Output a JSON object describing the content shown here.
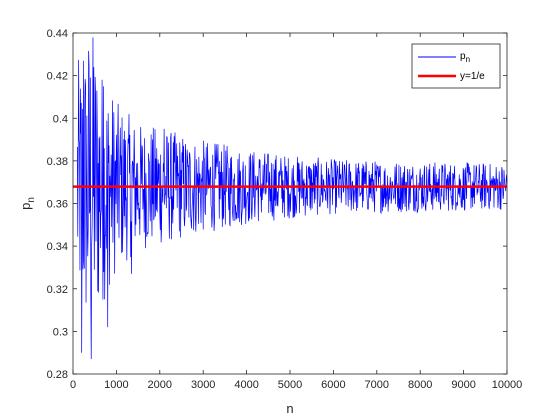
{
  "chart_data": {
    "type": "line",
    "xlabel": "n",
    "ylabel": "p",
    "ylabel_sub": "n",
    "xlim": [
      0,
      10000
    ],
    "ylim": [
      0.28,
      0.44
    ],
    "xticks": [
      0,
      1000,
      2000,
      3000,
      4000,
      5000,
      6000,
      7000,
      8000,
      9000,
      10000
    ],
    "xtick_labels": [
      "0",
      "1000",
      "2000",
      "3000",
      "4000",
      "5000",
      "6000",
      "7000",
      "8000",
      "9000",
      "10000"
    ],
    "yticks": [
      0.28,
      0.3,
      0.32,
      0.34,
      0.36,
      0.38,
      0.4,
      0.42,
      0.44
    ],
    "ytick_labels": [
      "0.28",
      "0.3",
      "0.32",
      "0.34",
      "0.36",
      "0.38",
      "0.4",
      "0.42",
      "0.44"
    ],
    "grid": false,
    "legend_position": "top-right",
    "series": [
      {
        "name": "p",
        "name_sub": "n",
        "color": "#0000ff",
        "style": "noisy line",
        "x_range": [
          100,
          10000
        ],
        "x_step": 10,
        "center": 0.3679,
        "envelope_x": [
          100,
          200,
          300,
          400,
          600,
          800,
          1000,
          1500,
          2000,
          3000,
          4000,
          5000,
          6000,
          8000,
          10000
        ],
        "envelope_halfwidth": [
          0.06,
          0.06,
          0.07,
          0.08,
          0.06,
          0.05,
          0.04,
          0.03,
          0.028,
          0.022,
          0.018,
          0.015,
          0.013,
          0.012,
          0.011
        ],
        "extremes": [
          {
            "x": 200,
            "y": 0.29
          },
          {
            "x": 240,
            "y": 0.427
          },
          {
            "x": 420,
            "y": 0.287
          },
          {
            "x": 480,
            "y": 0.424
          },
          {
            "x": 700,
            "y": 0.415
          },
          {
            "x": 800,
            "y": 0.302
          },
          {
            "x": 1350,
            "y": 0.327
          },
          {
            "x": 2100,
            "y": 0.395
          }
        ]
      },
      {
        "name": "y=1/e",
        "color": "#ff0000",
        "style": "solid",
        "y": 0.3679
      }
    ]
  }
}
